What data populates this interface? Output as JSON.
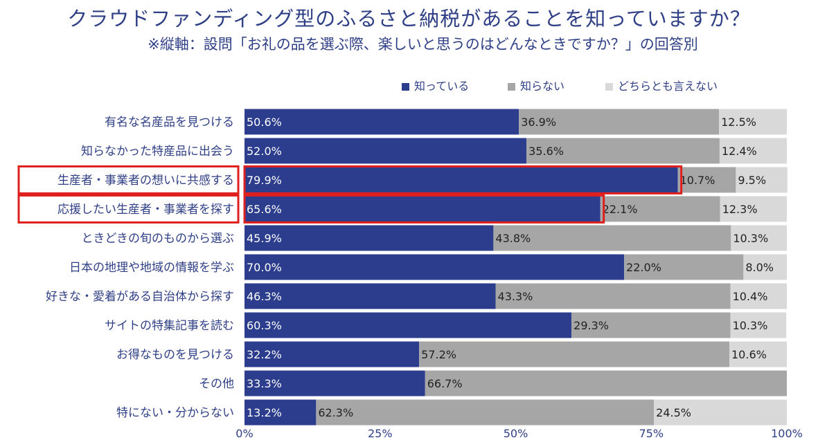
{
  "chart_data": {
    "type": "bar",
    "orientation": "horizontal",
    "stacked": true,
    "title": "クラウドファンディング型のふるさと納税があることを知っていますか？",
    "subtitle": "※縦軸：設問「お礼の品を選ぶ際、楽しいと思うのはどんなときですか？」の回答別",
    "categories": [
      "有名な名産品を見つける",
      "知らなかった特産品に出会う",
      "生産者・事業者の想いに共感する",
      "応援したい生産者・事業者を探す",
      "ときどきの旬のものから選ぶ",
      "日本の地理や地域の情報を学ぶ",
      "好きな・愛着がある自治体から探す",
      "サイトの特集記事を読む",
      "お得なものを見つける",
      "その他",
      "特にない・分からない"
    ],
    "series": [
      {
        "name": "知っている",
        "color": "#2b3d8c",
        "values": [
          50.6,
          52.0,
          79.9,
          65.6,
          45.9,
          70.0,
          46.3,
          60.3,
          32.2,
          33.3,
          13.2
        ],
        "labels": [
          "50.6%",
          "52.0%",
          "79.9%",
          "65.6%",
          "45.9%",
          "70.0%",
          "46.3%",
          "60.3%",
          "32.2%",
          "33.3%",
          "13.2%"
        ]
      },
      {
        "name": "知らない",
        "color": "#a6a6a6",
        "values": [
          36.9,
          35.6,
          10.7,
          22.1,
          43.8,
          22.0,
          43.3,
          29.3,
          57.2,
          66.7,
          62.3
        ],
        "labels": [
          "36.9%",
          "35.6%",
          "10.7%",
          "22.1%",
          "43.8%",
          "22.0%",
          "43.3%",
          "29.3%",
          "57.2%",
          "66.7%",
          "62.3%"
        ]
      },
      {
        "name": "どちらとも言えない",
        "color": "#d9d9d9",
        "values": [
          12.5,
          12.4,
          9.5,
          12.3,
          10.3,
          8.0,
          10.4,
          10.3,
          10.6,
          0,
          24.5
        ],
        "labels": [
          "12.5%",
          "12.4%",
          "9.5%",
          "12.3%",
          "10.3%",
          "8.0%",
          "10.4%",
          "10.3%",
          "10.6%",
          "",
          "24.5%"
        ]
      }
    ],
    "xlim": [
      0,
      100
    ],
    "xticks": [
      "0%",
      "25%",
      "50%",
      "75%",
      "100%"
    ],
    "legend_position": "top-right",
    "highlighted_categories": [
      2,
      3
    ],
    "highlight_color": "#e01f1f"
  }
}
